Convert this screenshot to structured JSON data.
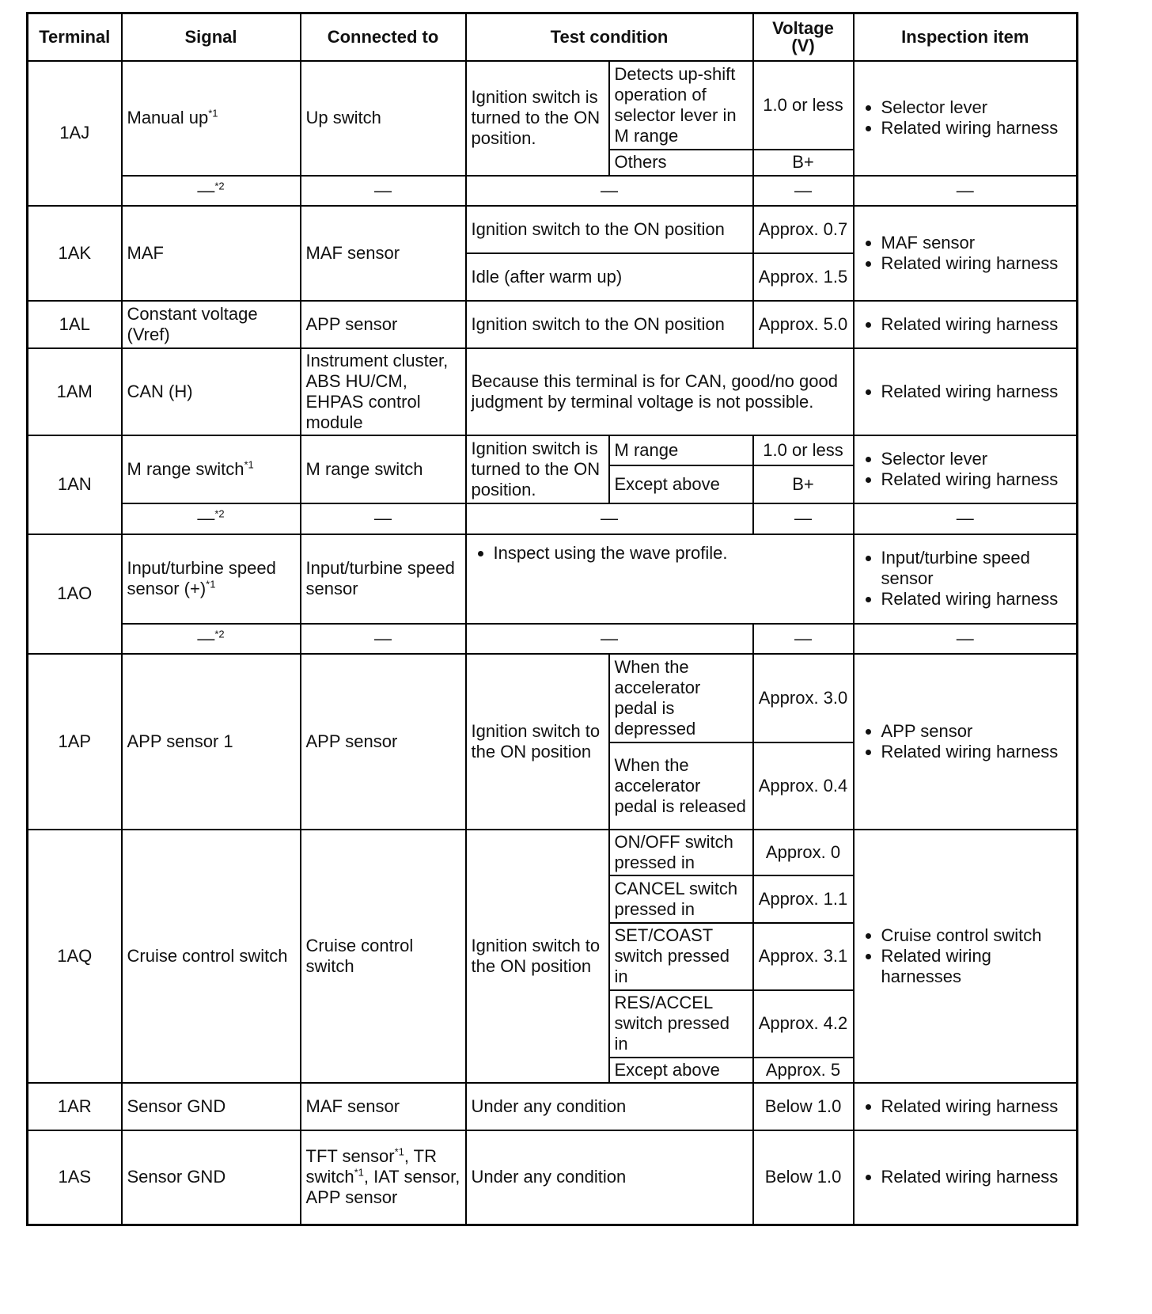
{
  "header": {
    "terminal": "Terminal",
    "signal": "Signal",
    "connected": "Connected to",
    "test": "Test condition",
    "voltage": "Voltage (V)",
    "inspection": "Inspection item"
  },
  "dash": "—",
  "dash_sup": "*2",
  "sup1": "*1",
  "rows": {
    "AJ": {
      "terminal": "1AJ",
      "signal": "Manual up",
      "connected": "Up switch",
      "cond": "Ignition switch is turned to the ON position.",
      "c1": "Detects up-shift operation of selector lever in M range",
      "v1": "1.0 or less",
      "c2": "Others",
      "v2": "B+",
      "insp": [
        "Selector lever",
        "Related wiring harness"
      ]
    },
    "AK": {
      "terminal": "1AK",
      "signal": "MAF",
      "connected": "MAF sensor",
      "c1": "Ignition switch to the ON position",
      "v1": "Approx. 0.7",
      "c2": "Idle (after warm up)",
      "v2": "Approx. 1.5",
      "insp": [
        "MAF sensor",
        "Related wiring harness"
      ]
    },
    "AL": {
      "terminal": "1AL",
      "signal": "Constant voltage (Vref)",
      "connected": "APP sensor",
      "c1": "Ignition switch to the ON position",
      "v1": "Approx. 5.0",
      "insp": [
        "Related wiring harness"
      ]
    },
    "AM": {
      "terminal": "1AM",
      "signal": "CAN (H)",
      "connected": "Instrument cluster, ABS HU/CM, EHPAS control module",
      "c1": "Because this terminal is for CAN, good/no good judgment by terminal voltage is not possible.",
      "insp": [
        "Related wiring harness"
      ]
    },
    "AN": {
      "terminal": "1AN",
      "signal": "M range switch",
      "connected": "M range switch",
      "cond": "Ignition switch is turned to the ON position.",
      "c1": "M range",
      "v1": "1.0 or less",
      "c2": "Except above",
      "v2": "B+",
      "insp": [
        "Selector lever",
        "Related wiring harness"
      ]
    },
    "AO": {
      "terminal": "1AO",
      "signal": "Input/turbine speed sensor (+)",
      "connected": "Input/turbine speed sensor",
      "c1": "Inspect using the wave profile.",
      "insp": [
        "Input/turbine speed sensor",
        "Related wiring harness"
      ]
    },
    "AP": {
      "terminal": "1AP",
      "signal": "APP sensor 1",
      "connected": "APP sensor",
      "cond": "Ignition switch to the ON position",
      "c1": "When the accelerator pedal is depressed",
      "v1": "Approx. 3.0",
      "c2": "When the accelerator pedal is released",
      "v2": "Approx. 0.4",
      "insp": [
        "APP sensor",
        "Related wiring harness"
      ]
    },
    "AQ": {
      "terminal": "1AQ",
      "signal": "Cruise control switch",
      "connected": "Cruise control switch",
      "cond": "Ignition switch to the ON position",
      "c1": "ON/OFF switch pressed in",
      "v1": "Approx. 0",
      "c2": "CANCEL switch pressed in",
      "v2": "Approx. 1.1",
      "c3": "SET/COAST switch pressed in",
      "v3": "Approx. 3.1",
      "c4": "RES/ACCEL switch pressed in",
      "v4": "Approx. 4.2",
      "c5": "Except above",
      "v5": "Approx. 5",
      "insp": [
        "Cruise control switch",
        "Related wiring harnesses"
      ]
    },
    "AR": {
      "terminal": "1AR",
      "signal": "Sensor GND",
      "connected": "MAF sensor",
      "c1": "Under any condition",
      "v1": "Below 1.0",
      "insp": [
        "Related wiring harness"
      ]
    },
    "AS": {
      "terminal": "1AS",
      "signal": "Sensor GND",
      "connected_parts": [
        "TFT sensor",
        ", TR switch",
        ", IAT sensor, APP sensor"
      ],
      "c1": "Under any condition",
      "v1": "Below 1.0",
      "insp": [
        "Related wiring harness"
      ]
    }
  }
}
